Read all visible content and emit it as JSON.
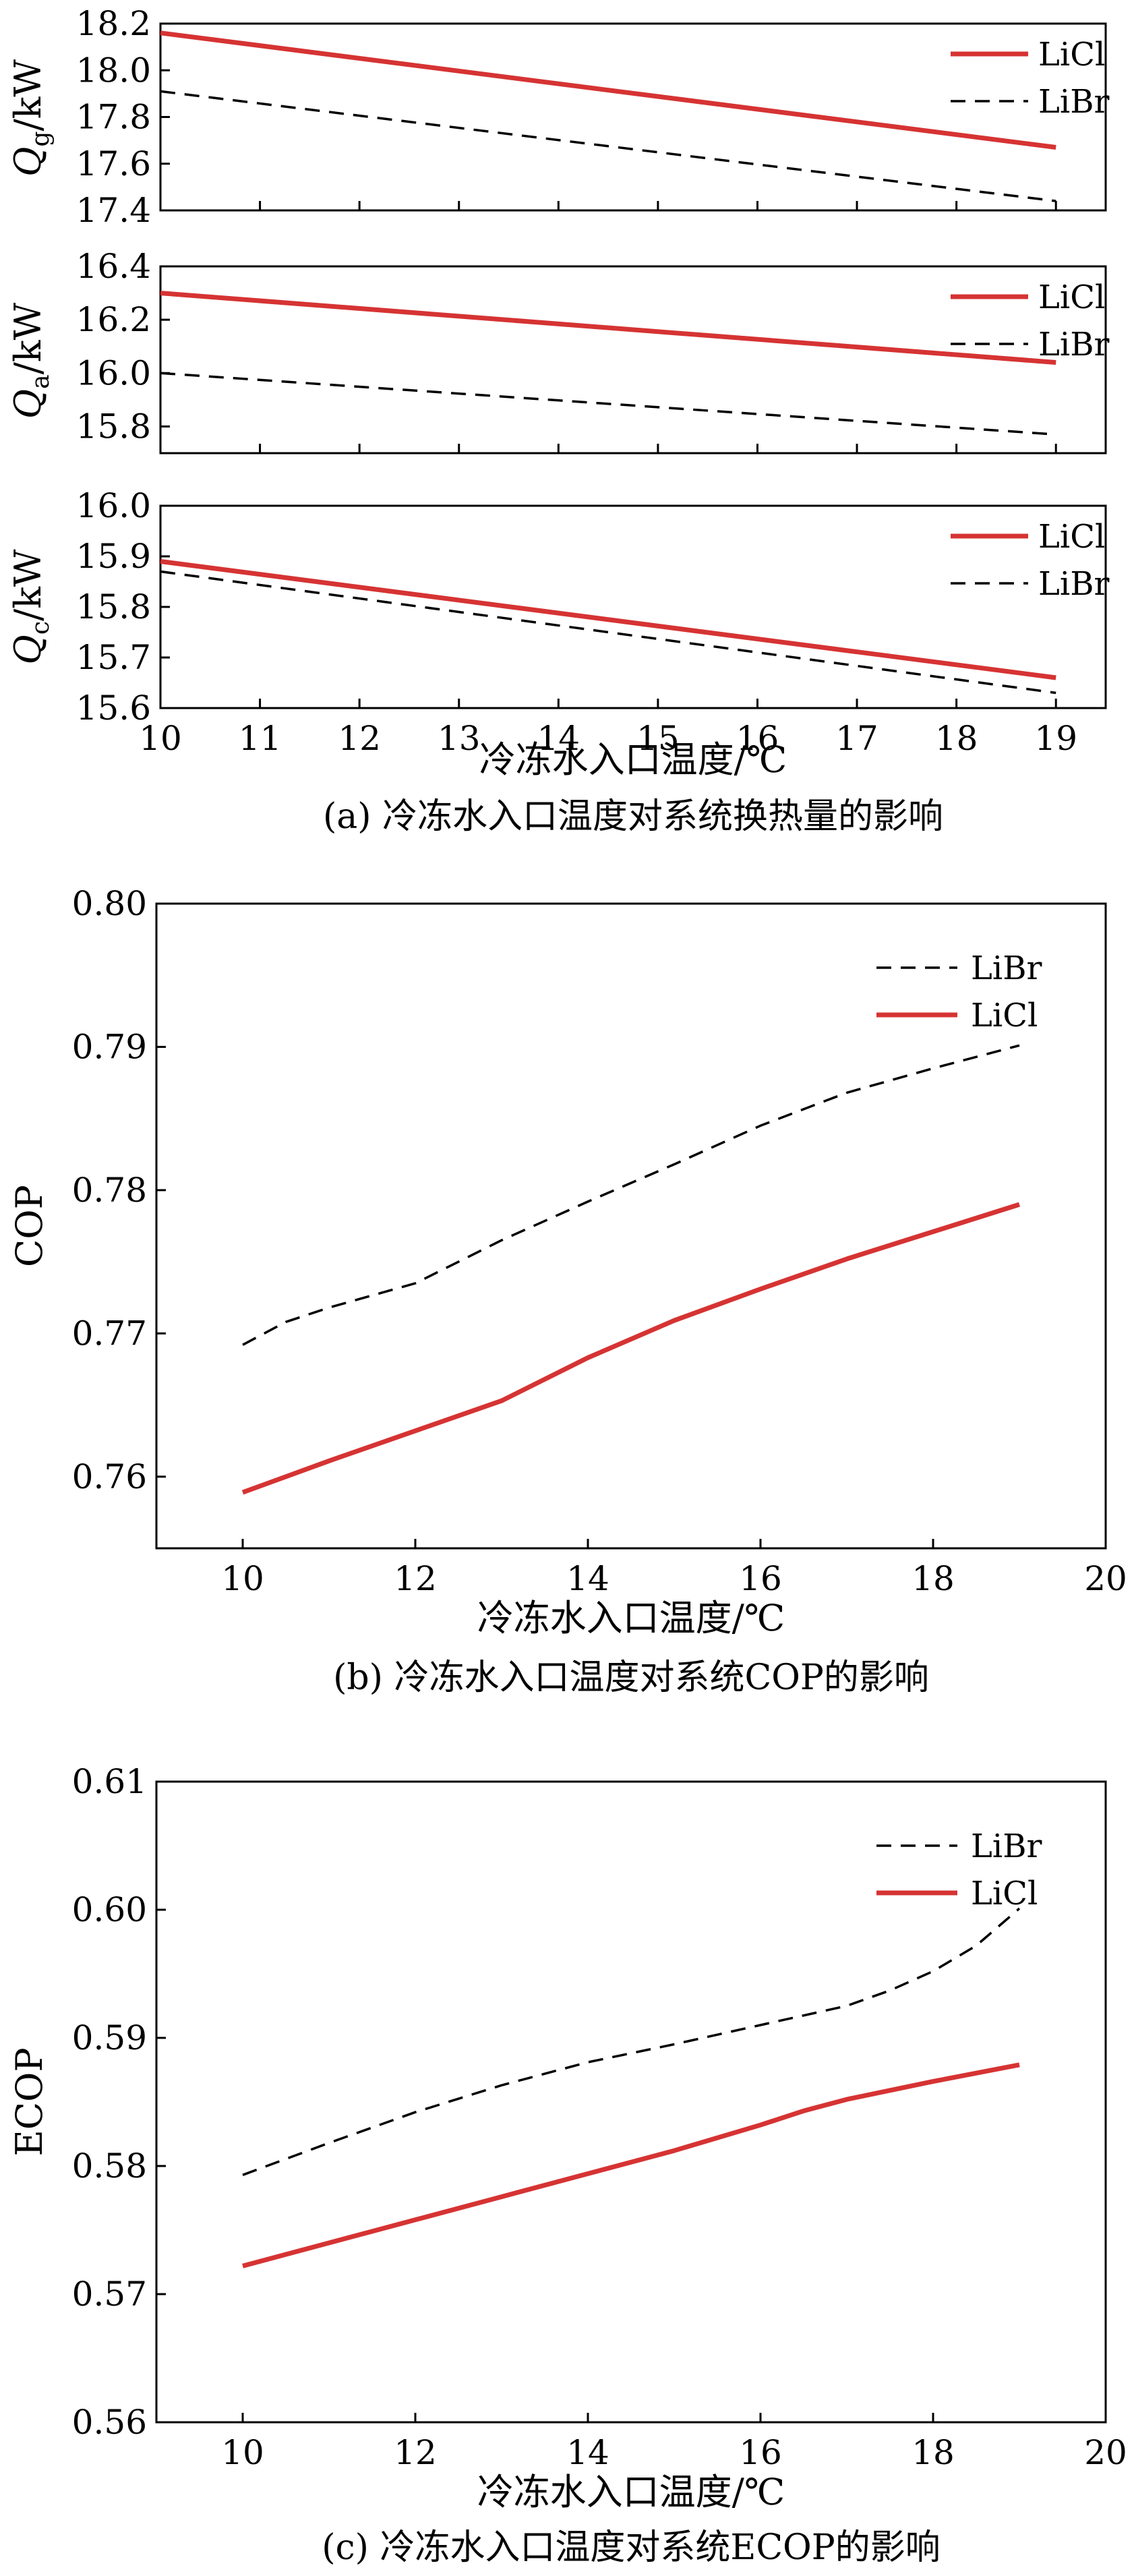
{
  "chart_data": [
    {
      "type": "line",
      "panel": "a-top",
      "ylabel": "Q",
      "ylabel_sub": "g",
      "ylabel_unit": "/kW",
      "xlim": [
        10,
        19.5
      ],
      "ylim": [
        17.4,
        18.2
      ],
      "yticks": [
        "18.2",
        "18.0",
        "17.8",
        "17.6",
        "17.4"
      ],
      "ytick_values": [
        18.2,
        18.0,
        17.8,
        17.6,
        17.4
      ],
      "legend_position": "top-right",
      "series": [
        {
          "name": "LiCl",
          "color": "#d63333",
          "style": "solid",
          "x": [
            10,
            19
          ],
          "y": [
            18.16,
            17.67
          ]
        },
        {
          "name": "LiBr",
          "color": "#000000",
          "style": "dashed",
          "x": [
            10,
            19
          ],
          "y": [
            17.91,
            17.44
          ]
        }
      ]
    },
    {
      "type": "line",
      "panel": "a-mid",
      "ylabel": "Q",
      "ylabel_sub": "a",
      "ylabel_unit": "/kW",
      "xlim": [
        10,
        19.5
      ],
      "ylim": [
        15.7,
        16.4
      ],
      "yticks": [
        "16.4",
        "16.2",
        "16.0",
        "15.8"
      ],
      "ytick_values": [
        16.4,
        16.2,
        16.0,
        15.8
      ],
      "legend_position": "top-right",
      "series": [
        {
          "name": "LiCl",
          "color": "#d63333",
          "style": "solid",
          "x": [
            10,
            19
          ],
          "y": [
            16.3,
            16.04
          ]
        },
        {
          "name": "LiBr",
          "color": "#000000",
          "style": "dashed",
          "x": [
            10,
            19
          ],
          "y": [
            16.0,
            15.77
          ]
        }
      ]
    },
    {
      "type": "line",
      "panel": "a-bottom",
      "ylabel": "Q",
      "ylabel_sub": "c",
      "ylabel_unit": "/kW",
      "xlabel": "冷冻水入口温度/℃",
      "caption": "(a) 冷冻水入口温度对系统换热量的影响",
      "xlim": [
        10,
        19.5
      ],
      "ylim": [
        15.6,
        16.0
      ],
      "xticks": [
        10,
        11,
        12,
        13,
        14,
        15,
        16,
        17,
        18,
        19
      ],
      "yticks": [
        "16.0",
        "15.9",
        "15.8",
        "15.7",
        "15.6"
      ],
      "ytick_values": [
        16.0,
        15.9,
        15.8,
        15.7,
        15.6
      ],
      "legend_position": "top-right",
      "series": [
        {
          "name": "LiCl",
          "color": "#d63333",
          "style": "solid",
          "x": [
            10,
            19
          ],
          "y": [
            15.89,
            15.66
          ]
        },
        {
          "name": "LiBr",
          "color": "#000000",
          "style": "dashed",
          "x": [
            10,
            19
          ],
          "y": [
            15.87,
            15.63
          ]
        }
      ]
    },
    {
      "type": "line",
      "panel": "b",
      "ylabel": "COP",
      "xlabel": "冷冻水入口温度/℃",
      "caption": "(b) 冷冻水入口温度对系统COP的影响",
      "xlim": [
        9,
        20
      ],
      "ylim": [
        0.755,
        0.8
      ],
      "xticks": [
        10,
        12,
        14,
        16,
        18,
        20
      ],
      "yticks": [
        "0.80",
        "0.79",
        "0.78",
        "0.77",
        "0.76"
      ],
      "ytick_values": [
        0.8,
        0.79,
        0.78,
        0.77,
        0.76
      ],
      "legend_position": "top-right",
      "series": [
        {
          "name": "LiBr",
          "color": "#000000",
          "style": "dashed",
          "x": [
            10,
            10.5,
            11,
            12,
            13,
            14,
            15,
            16,
            17,
            18,
            19
          ],
          "y": [
            0.7692,
            0.7708,
            0.7718,
            0.7735,
            0.7765,
            0.7792,
            0.7818,
            0.7845,
            0.7868,
            0.7885,
            0.7901
          ]
        },
        {
          "name": "LiCl",
          "color": "#d63333",
          "style": "solid",
          "x": [
            10,
            11,
            12,
            13,
            14,
            15,
            16,
            17,
            18,
            19
          ],
          "y": [
            0.7589,
            0.7611,
            0.7632,
            0.7653,
            0.7683,
            0.7709,
            0.7731,
            0.7752,
            0.7771,
            0.779
          ]
        }
      ]
    },
    {
      "type": "line",
      "panel": "c",
      "ylabel": "ECOP",
      "xlabel": "冷冻水入口温度/℃",
      "caption": "(c) 冷冻水入口温度对系统ECOP的影响",
      "xlim": [
        9,
        20
      ],
      "ylim": [
        0.56,
        0.61
      ],
      "xticks": [
        10,
        12,
        14,
        16,
        18,
        20
      ],
      "yticks": [
        "0.61",
        "0.60",
        "0.59",
        "0.58",
        "0.57",
        "0.56"
      ],
      "ytick_values": [
        0.61,
        0.6,
        0.59,
        0.58,
        0.57,
        0.56
      ],
      "legend_position": "top-right",
      "series": [
        {
          "name": "LiBr",
          "color": "#000000",
          "style": "dashed",
          "x": [
            10,
            11,
            12,
            13,
            14,
            15,
            16,
            17,
            17.5,
            18,
            18.5,
            19
          ],
          "y": [
            0.5793,
            0.5818,
            0.5842,
            0.5863,
            0.5881,
            0.5895,
            0.591,
            0.5925,
            0.5937,
            0.5952,
            0.5972,
            0.6001
          ]
        },
        {
          "name": "LiCl",
          "color": "#d63333",
          "style": "solid",
          "x": [
            10,
            11,
            12,
            13,
            14,
            15,
            16,
            16.5,
            17,
            18,
            19
          ],
          "y": [
            0.5722,
            0.574,
            0.5758,
            0.5776,
            0.5794,
            0.5812,
            0.5832,
            0.5843,
            0.5852,
            0.5866,
            0.5879
          ]
        }
      ]
    }
  ]
}
